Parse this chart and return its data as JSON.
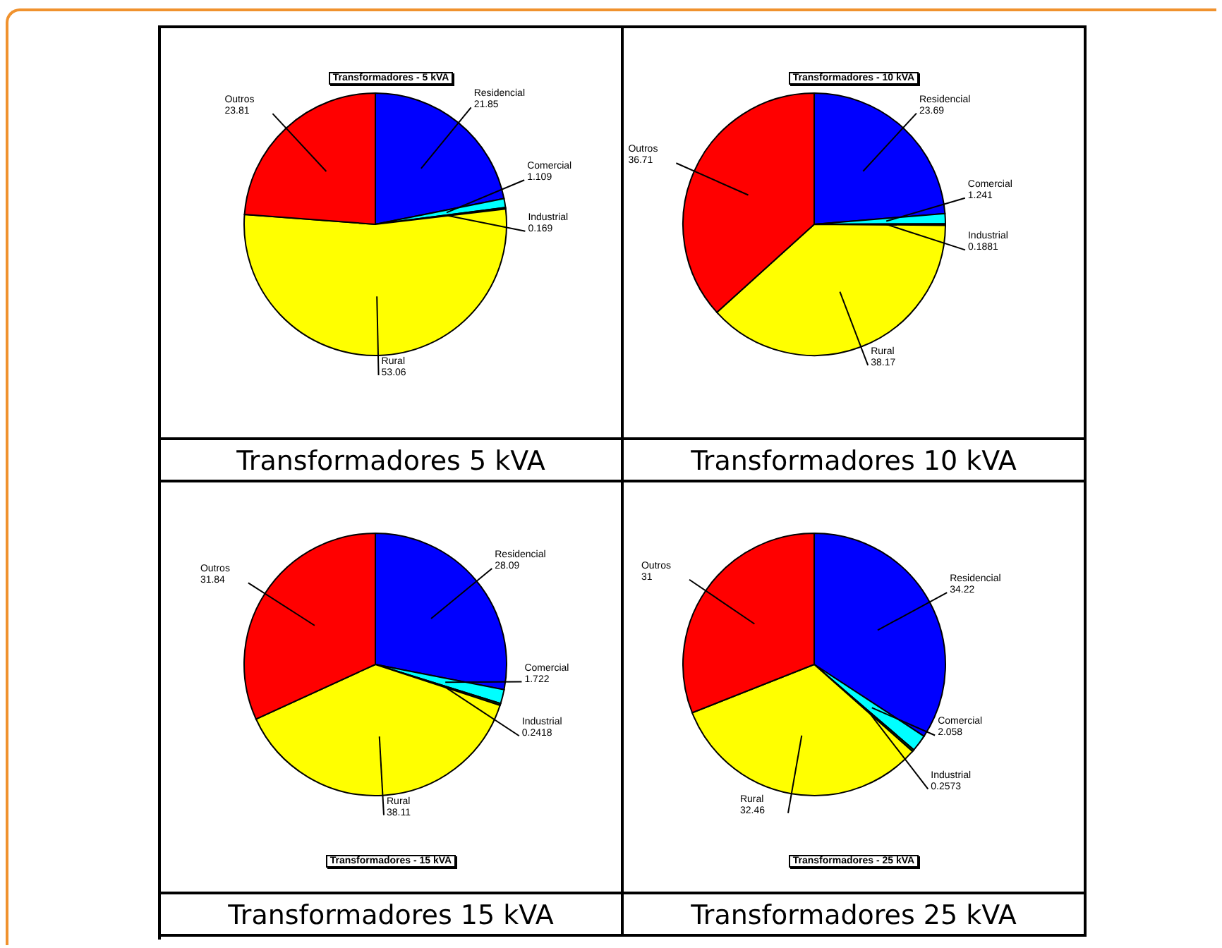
{
  "chart_data": [
    {
      "type": "pie",
      "title": "Transformadores - 5 kVA",
      "categories": [
        "Residencial",
        "Comercial",
        "Industrial",
        "Rural",
        "Outros"
      ],
      "values": [
        21.85,
        1.109,
        0.169,
        53.06,
        23.81
      ],
      "colors": [
        "#0000ff",
        "#00ffff",
        "#005000",
        "#ffff00",
        "#ff0000"
      ],
      "data_labels": true,
      "annotations": [
        "Transformadores 5 kVA"
      ]
    },
    {
      "type": "pie",
      "title": "Transformadores - 10 kVA",
      "categories": [
        "Residencial",
        "Comercial",
        "Industrial",
        "Rural",
        "Outros"
      ],
      "values": [
        23.69,
        1.241,
        0.1881,
        38.17,
        36.71
      ],
      "colors": [
        "#0000ff",
        "#00ffff",
        "#005000",
        "#ffff00",
        "#ff0000"
      ],
      "data_labels": true,
      "annotations": [
        "Transformadores 10 kVA"
      ]
    },
    {
      "type": "pie",
      "title": "Transformadores - 15 kVA",
      "categories": [
        "Residencial",
        "Comercial",
        "Industrial",
        "Rural",
        "Outros"
      ],
      "values": [
        28.09,
        1.722,
        0.2418,
        38.11,
        31.84
      ],
      "colors": [
        "#0000ff",
        "#00ffff",
        "#005000",
        "#ffff00",
        "#ff0000"
      ],
      "data_labels": true,
      "annotations": [
        "Transformadores 15 kVA"
      ]
    },
    {
      "type": "pie",
      "title": "Transformadores - 25 kVA",
      "categories": [
        "Residencial",
        "Comercial",
        "Industrial",
        "Rural",
        "Outros"
      ],
      "values": [
        34.22,
        2.058,
        0.2573,
        32.46,
        31
      ],
      "colors": [
        "#0000ff",
        "#00ffff",
        "#005000",
        "#ffff00",
        "#ff0000"
      ],
      "data_labels": true,
      "annotations": [
        "Transformadores 25 kVA"
      ]
    }
  ]
}
